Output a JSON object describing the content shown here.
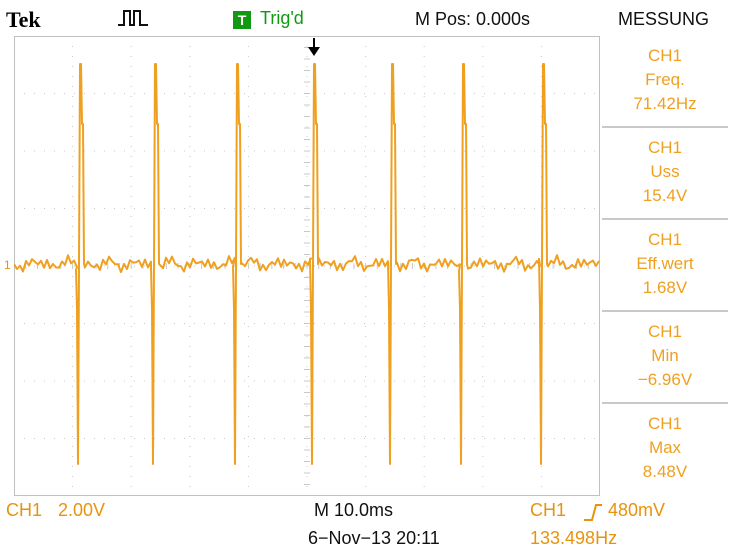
{
  "header": {
    "brand": "Tek",
    "acquire_icon": "pulse-run-icon",
    "trigger_badge": "T",
    "trigger_status": "Trig'd",
    "position": "M Pos: 0.000s"
  },
  "menu": {
    "title": "MESSUNG",
    "measurements": [
      {
        "channel": "CH1",
        "label": "Freq.",
        "value": "71.42Hz"
      },
      {
        "channel": "CH1",
        "label": "Uss",
        "value": "15.4V"
      },
      {
        "channel": "CH1",
        "label": "Eff.wert",
        "value": "1.68V"
      },
      {
        "channel": "CH1",
        "label": "Min",
        "value": "−6.96V"
      },
      {
        "channel": "CH1",
        "label": "Max",
        "value": "8.48V"
      }
    ]
  },
  "screen": {
    "ground_marker": "1",
    "trace_color": "#f0a020",
    "grid_color": "#c8c8c8",
    "divisions": {
      "horizontal": 10,
      "vertical": 8
    }
  },
  "footer": {
    "channel": "CH1",
    "volts_per_div": "2.00V",
    "time_base": "M 10.0ms",
    "datetime": "6−Nov−13 20:11",
    "trigger_channel": "CH1",
    "trigger_level": "480mV",
    "trigger_frequency": "133.498Hz"
  },
  "colors": {
    "trace": "#f0a020",
    "trigger_green": "#119911",
    "text": "#111111"
  }
}
